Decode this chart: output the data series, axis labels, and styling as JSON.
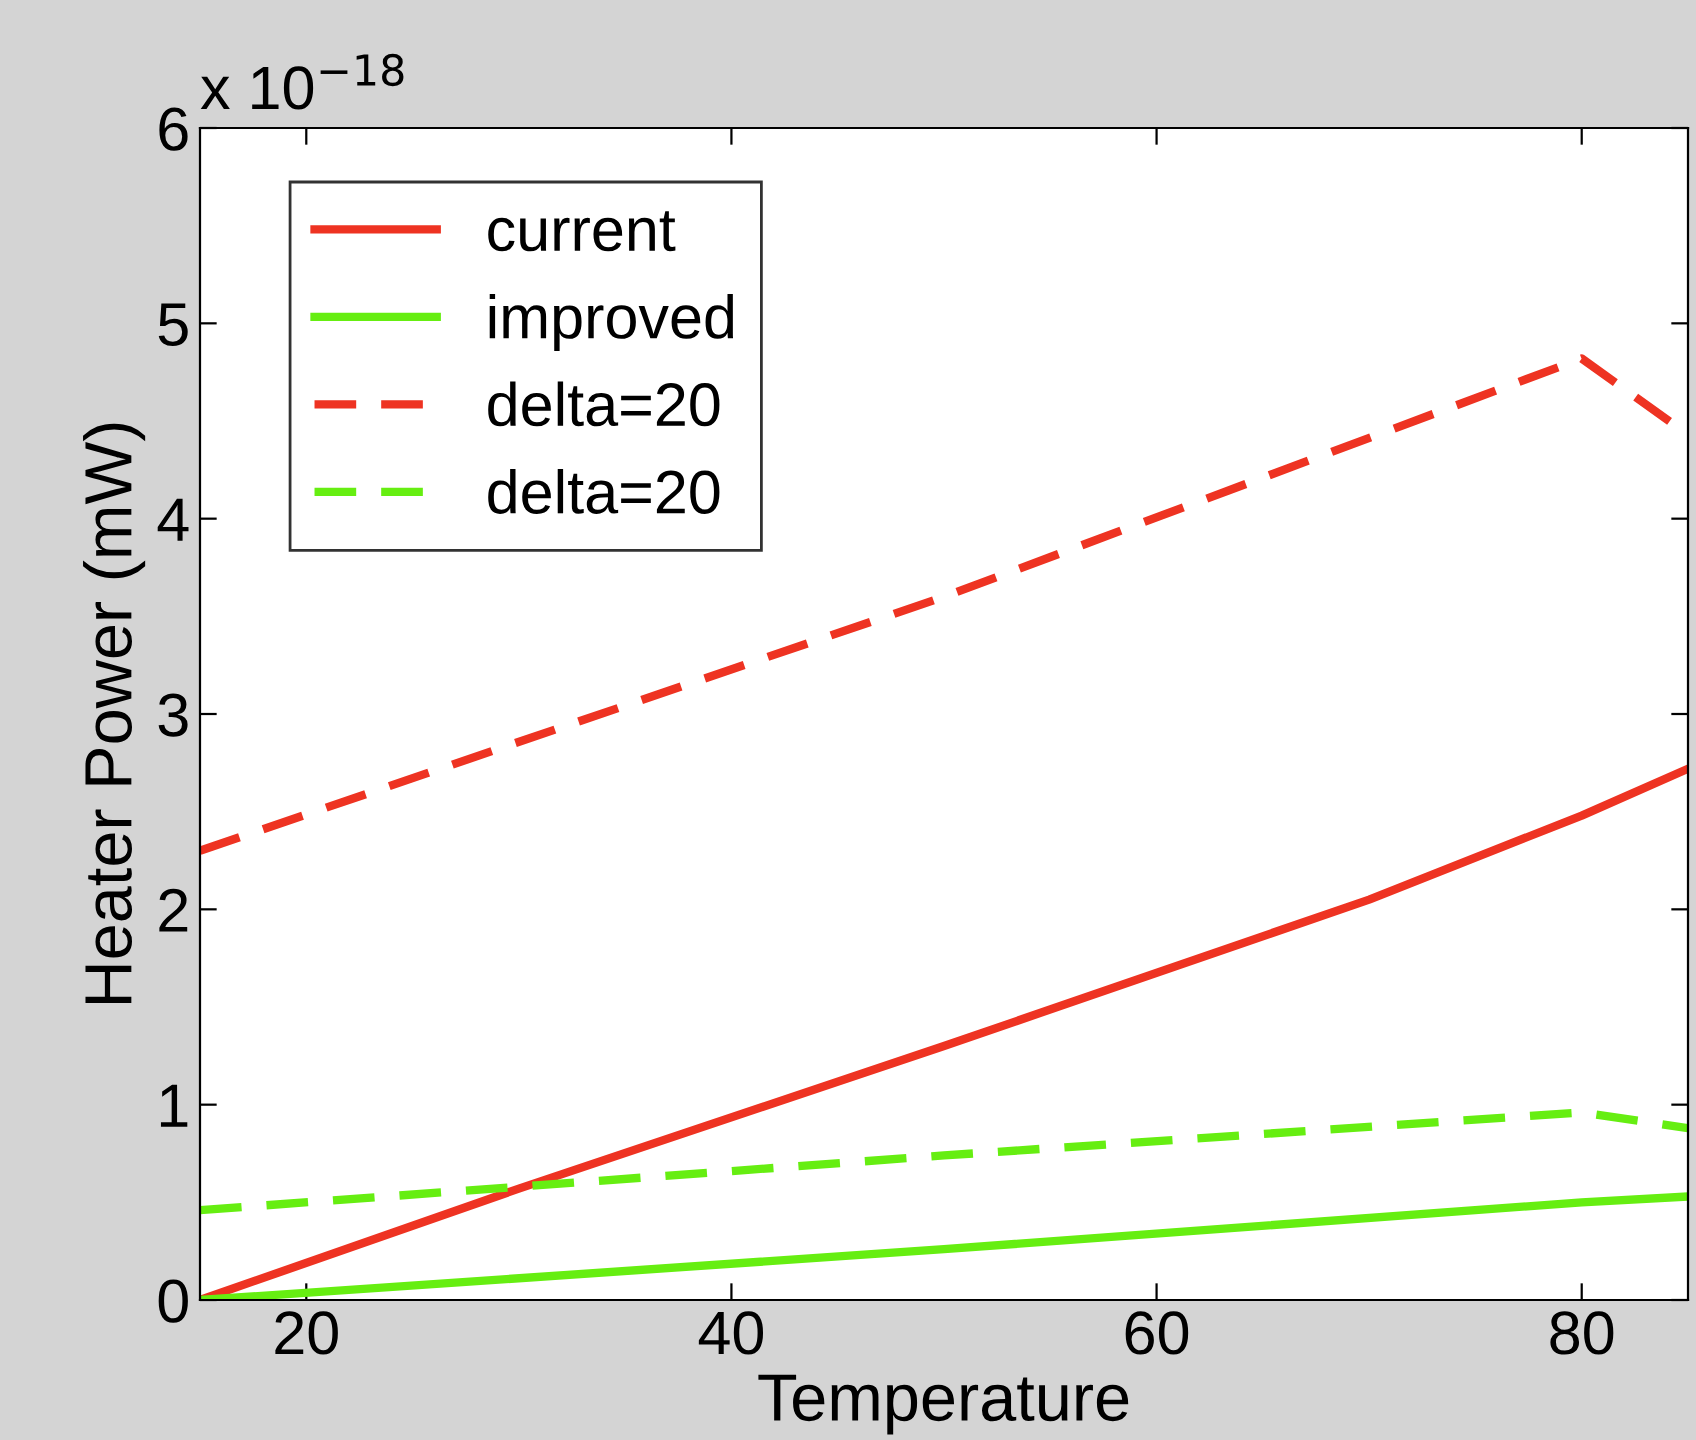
{
  "chart_data": {
    "type": "line",
    "xlabel": "Temperature",
    "ylabel": "Heater Power (mW)",
    "annotations": [
      "x 10$^{−18}$"
    ],
    "xlim": [
      15,
      85
    ],
    "xticks": [
      20,
      40,
      60,
      80
    ],
    "ylim": [
      0,
      6
    ],
    "yticks": [
      0,
      1,
      2,
      3,
      4,
      5,
      6
    ],
    "grid": false,
    "legend": "top left",
    "series": [
      {
        "name": "current",
        "color": "#ee3322",
        "line_style": "solid",
        "x": [
          15,
          30,
          50,
          70,
          80,
          85
        ],
        "values": [
          0,
          0.57,
          1.3,
          2.05,
          2.48,
          2.72
        ]
      },
      {
        "name": "improved",
        "color": "#66ee11",
        "line_style": "solid",
        "x": [
          15,
          50,
          80,
          85
        ],
        "values": [
          0,
          0.26,
          0.5,
          0.53
        ]
      },
      {
        "name": "delta=20",
        "color": "#ee3322",
        "line_style": "dashed",
        "x": [
          15,
          50,
          80,
          85
        ],
        "values": [
          2.3,
          3.6,
          4.82,
          4.43
        ]
      },
      {
        "name": "delta=20",
        "color": "#66ee11",
        "line_style": "dashed",
        "x": [
          15,
          50,
          80,
          85
        ],
        "values": [
          0.46,
          0.74,
          0.96,
          0.88
        ]
      }
    ]
  }
}
